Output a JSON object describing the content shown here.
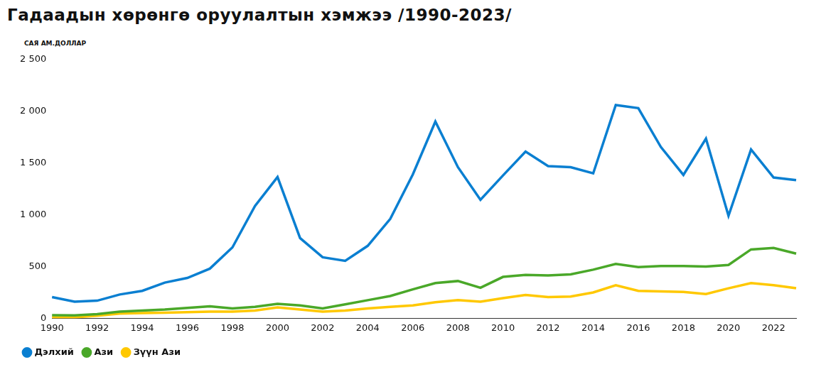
{
  "chart_data": {
    "type": "line",
    "title": "Гадаадын хөрөнгө оруулалтын хэмжээ /1990-2023/",
    "y_label": "САЯ АМ.ДОЛЛАР",
    "categories": [
      "1990",
      null,
      "1992",
      null,
      "1994",
      null,
      "1996",
      null,
      "1998",
      null,
      "2000",
      null,
      "2002",
      null,
      "2004",
      null,
      "2006",
      null,
      "2008",
      null,
      "2010",
      null,
      "2012",
      null,
      "2014",
      null,
      "2016",
      null,
      "2018",
      null,
      "2020",
      null,
      "2022",
      null
    ],
    "series": [
      {
        "name": "Дэлхий",
        "color": "#0a7fd1",
        "values": [
          205,
          160,
          170,
          230,
          265,
          345,
          390,
          480,
          685,
          1085,
          1365,
          775,
          590,
          555,
          700,
          960,
          1390,
          1900,
          1460,
          1145,
          1380,
          1610,
          1470,
          1460,
          1400,
          2060,
          2030,
          1655,
          1385,
          1735,
          990,
          1630,
          1360,
          1335
        ]
      },
      {
        "name": "Ази",
        "color": "#4aa829",
        "values": [
          30,
          28,
          40,
          65,
          75,
          85,
          100,
          115,
          95,
          110,
          140,
          125,
          95,
          135,
          175,
          215,
          280,
          340,
          360,
          295,
          400,
          420,
          415,
          425,
          470,
          525,
          495,
          505,
          505,
          500,
          515,
          665,
          680,
          625
        ]
      },
      {
        "name": "Зүүн Ази",
        "color": "#ffc800",
        "values": [
          10,
          10,
          25,
          45,
          50,
          55,
          60,
          65,
          65,
          75,
          105,
          85,
          65,
          75,
          95,
          110,
          125,
          155,
          175,
          160,
          195,
          225,
          205,
          210,
          250,
          320,
          265,
          260,
          255,
          235,
          290,
          340,
          320,
          290
        ]
      }
    ],
    "ylim": [
      0,
      2500
    ],
    "yticks": [
      0,
      500,
      {
        "value": 1000,
        "label": "1 000"
      },
      {
        "value": 1500,
        "label": "1 500"
      },
      {
        "value": 2000,
        "label": "2 000"
      },
      {
        "value": 2500,
        "label": "2 500"
      }
    ],
    "grid": false,
    "legend": "bottom-left"
  }
}
